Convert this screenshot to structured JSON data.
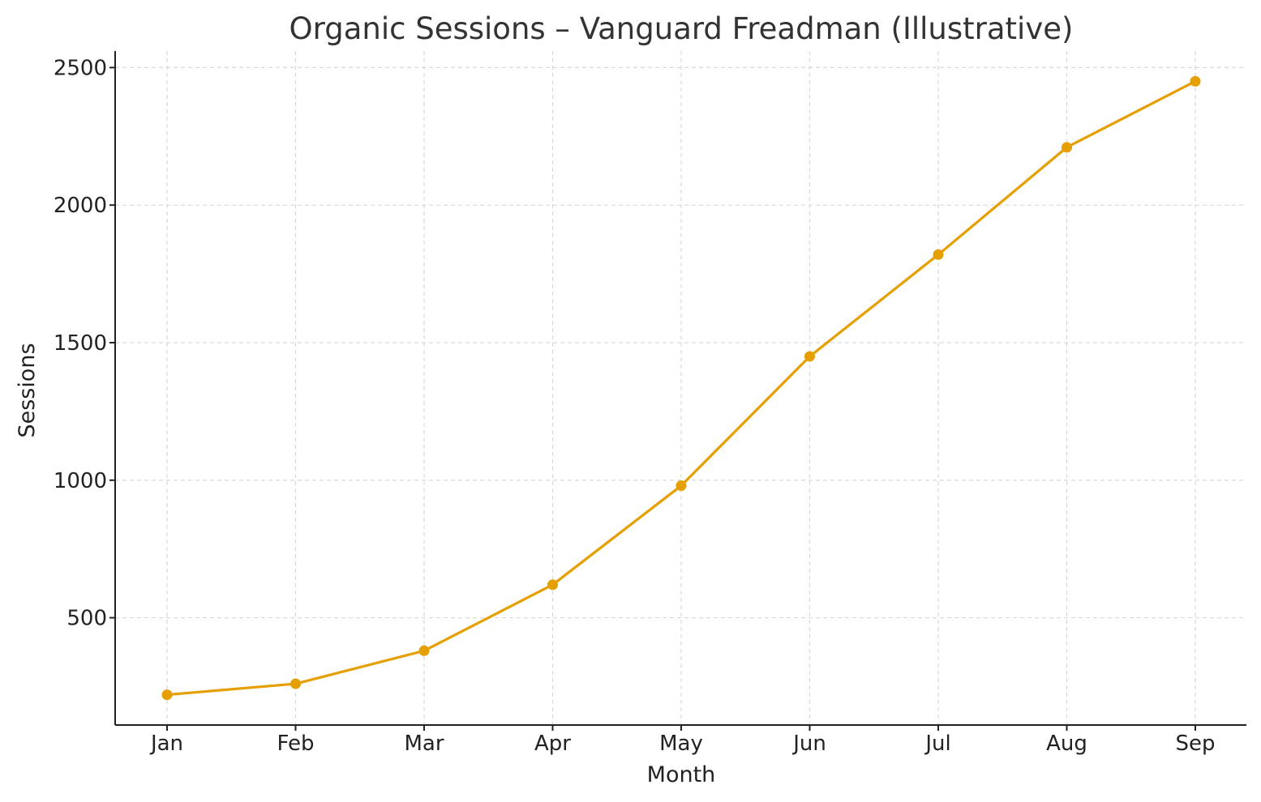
{
  "chart_data": {
    "type": "line",
    "title": "Organic Sessions – Vanguard Freadman (Illustrative)",
    "xlabel": "Month",
    "ylabel": "Sessions",
    "categories": [
      "Jan",
      "Feb",
      "Mar",
      "Apr",
      "May",
      "Jun",
      "Jul",
      "Aug",
      "Sep"
    ],
    "series": [
      {
        "values": [
          220,
          260,
          380,
          620,
          980,
          1450,
          1820,
          2210,
          2450
        ]
      }
    ],
    "ylim": [
      110,
      2560
    ],
    "yticks": [
      500,
      1000,
      1500,
      2000,
      2500
    ],
    "grid": true,
    "color": "#E69F00"
  }
}
